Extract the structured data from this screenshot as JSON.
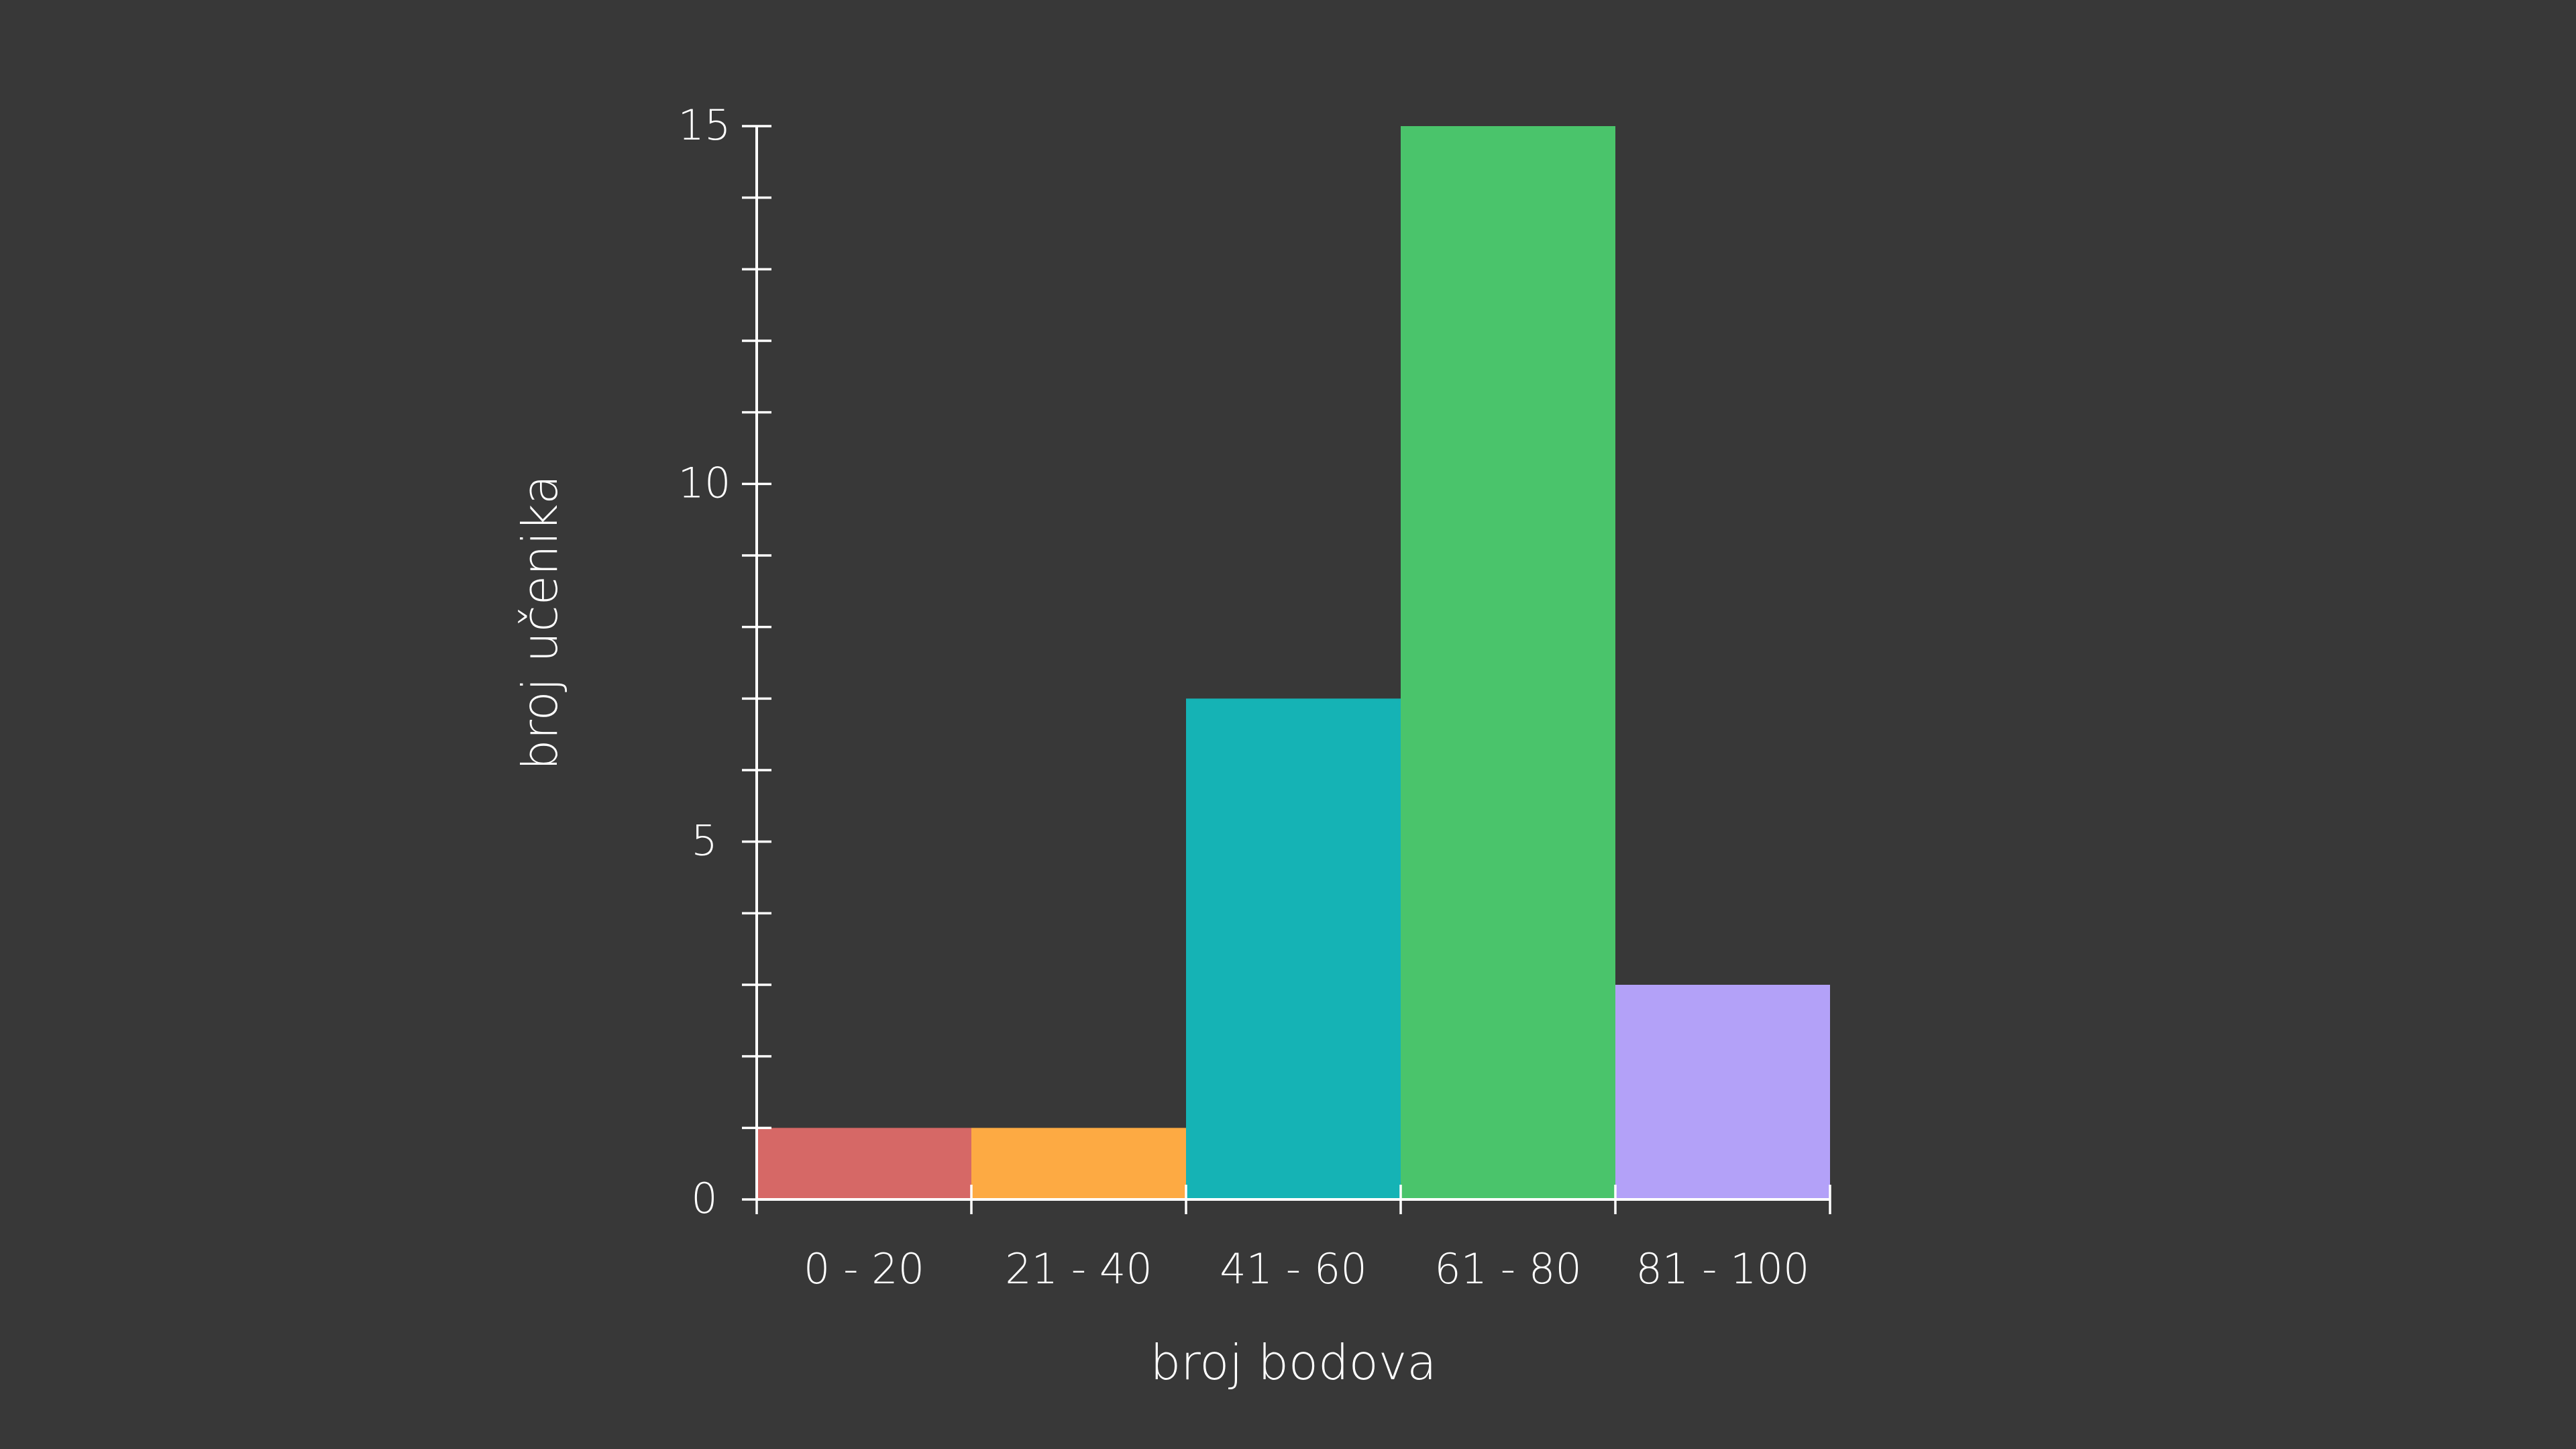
{
  "chart_data": {
    "type": "bar",
    "title": "",
    "xlabel": "broj bodova",
    "ylabel": "broj učenika",
    "categories": [
      "0 - 20",
      "21 - 40",
      "41 - 60",
      "61 - 80",
      "81 - 100"
    ],
    "values": [
      1,
      1,
      7,
      15,
      3
    ],
    "colors": [
      "#d66866",
      "#fdaa43",
      "#15b3b5",
      "#4ac46b",
      "#b3a1f8"
    ],
    "ylim": [
      0,
      15
    ],
    "y_major_ticks": [
      0,
      5,
      10,
      15
    ],
    "y_minor_step": 1,
    "grid": false,
    "legend": "none",
    "axis_color": "#ffffff",
    "background_color": "#383838"
  }
}
